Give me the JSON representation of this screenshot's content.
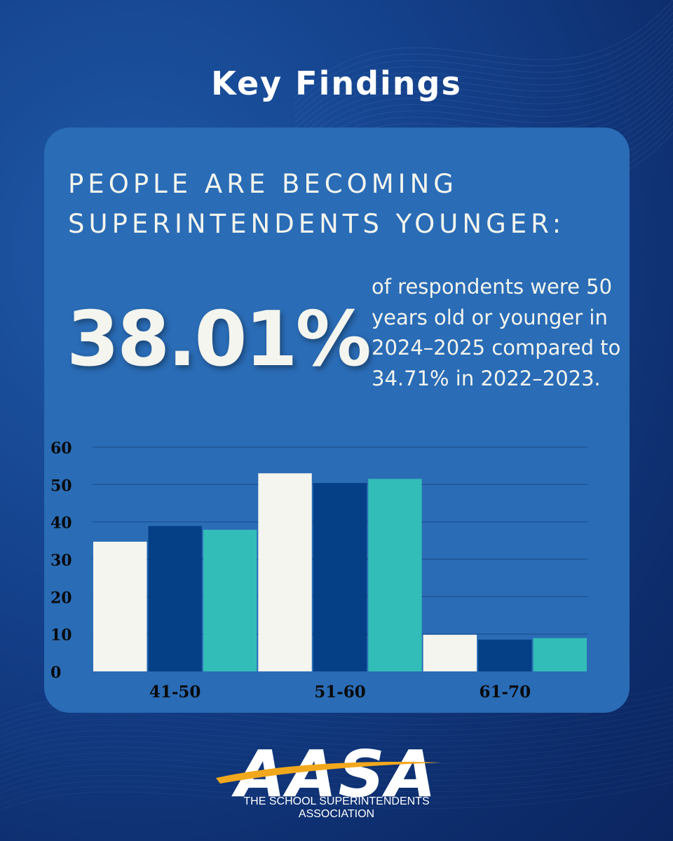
{
  "title": "Key Findings",
  "headline": {
    "line1": "PEOPLE ARE BECOMING",
    "line2": "SUPERINTENDENTS YOUNGER:"
  },
  "stat": {
    "value": "38.01%",
    "description": "of respondents were 50 years old or younger in 2024–2025 compared to 34.71% in 2022–2023."
  },
  "chart_data": {
    "type": "bar",
    "categories": [
      "41-50",
      "51-60",
      "61-70"
    ],
    "series": [
      {
        "values": [
          34.7,
          53.0,
          9.8
        ],
        "color": "#f4f5ee"
      },
      {
        "values": [
          38.9,
          50.4,
          8.5
        ],
        "color": "#053f86"
      },
      {
        "values": [
          37.9,
          51.5,
          8.9
        ],
        "color": "#33bdb8"
      }
    ],
    "yticks": [
      "0",
      "10",
      "20",
      "30",
      "40",
      "50",
      "60"
    ],
    "ylim": [
      0,
      60
    ],
    "grid": true
  },
  "logo": {
    "text": "AASA",
    "tagline": "THE SCHOOL SUPERINTENDENTS ASSOCIATION"
  }
}
